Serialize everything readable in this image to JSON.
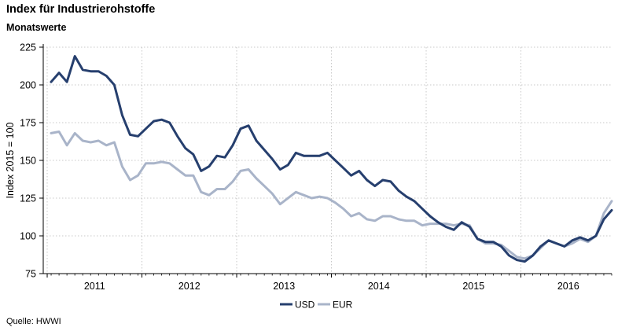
{
  "title": "Index für Industrierohstoffe",
  "subtitle": "Monatswerte",
  "source": "Quelle: HWWI",
  "colors": {
    "usd": "#263f6e",
    "eur": "#a9b4c9",
    "grid": "#c8c8c8",
    "axis": "#000000"
  },
  "chart_data": {
    "type": "line",
    "title": "Index für Industrierohstoffe",
    "subtitle": "Monatswerte",
    "xlabel": "",
    "ylabel": "Index 2015 = 100",
    "ylim": [
      75,
      225
    ],
    "yticks": [
      75,
      100,
      125,
      150,
      175,
      200,
      225
    ],
    "xlim": [
      "2010-12",
      "2016-12"
    ],
    "year_ticks": [
      "2011",
      "2012",
      "2013",
      "2014",
      "2015",
      "2016"
    ],
    "grid": true,
    "legend_position": "bottom-center",
    "x": [
      "2011-01",
      "2011-02",
      "2011-03",
      "2011-04",
      "2011-05",
      "2011-06",
      "2011-07",
      "2011-08",
      "2011-09",
      "2011-10",
      "2011-11",
      "2011-12",
      "2012-01",
      "2012-02",
      "2012-03",
      "2012-04",
      "2012-05",
      "2012-06",
      "2012-07",
      "2012-08",
      "2012-09",
      "2012-10",
      "2012-11",
      "2012-12",
      "2013-01",
      "2013-02",
      "2013-03",
      "2013-04",
      "2013-05",
      "2013-06",
      "2013-07",
      "2013-08",
      "2013-09",
      "2013-10",
      "2013-11",
      "2013-12",
      "2014-01",
      "2014-02",
      "2014-03",
      "2014-04",
      "2014-05",
      "2014-06",
      "2014-07",
      "2014-08",
      "2014-09",
      "2014-10",
      "2014-11",
      "2014-12",
      "2015-01",
      "2015-02",
      "2015-03",
      "2015-04",
      "2015-05",
      "2015-06",
      "2015-07",
      "2015-08",
      "2015-09",
      "2015-10",
      "2015-11",
      "2015-12",
      "2016-01",
      "2016-02",
      "2016-03",
      "2016-04",
      "2016-05",
      "2016-06",
      "2016-07",
      "2016-08",
      "2016-09",
      "2016-10",
      "2016-11",
      "2016-12"
    ],
    "series": [
      {
        "name": "USD",
        "values": [
          202,
          208,
          202,
          219,
          210,
          209,
          209,
          206,
          200,
          180,
          167,
          166,
          171,
          176,
          177,
          175,
          166,
          158,
          154,
          143,
          146,
          153,
          152,
          160,
          171,
          173,
          163,
          157,
          151,
          144,
          147,
          155,
          153,
          153,
          153,
          155,
          150,
          145,
          140,
          143,
          137,
          133,
          137,
          136,
          130,
          126,
          123,
          118,
          113,
          109,
          106,
          104,
          109,
          106,
          98,
          96,
          96,
          93,
          87,
          84,
          83,
          87,
          93,
          97,
          95,
          93,
          97,
          99,
          97,
          100,
          111,
          117
        ]
      },
      {
        "name": "EUR",
        "values": [
          168,
          169,
          160,
          168,
          163,
          162,
          163,
          160,
          162,
          146,
          137,
          140,
          148,
          148,
          149,
          148,
          144,
          140,
          140,
          129,
          127,
          131,
          131,
          136,
          143,
          144,
          138,
          133,
          128,
          121,
          125,
          129,
          127,
          125,
          126,
          125,
          122,
          118,
          113,
          115,
          111,
          110,
          113,
          113,
          111,
          110,
          110,
          107,
          108,
          108,
          108,
          107,
          108,
          107,
          98,
          95,
          95,
          94,
          90,
          86,
          85,
          87,
          92,
          97,
          95,
          93,
          95,
          98,
          96,
          100,
          115,
          123
        ]
      }
    ]
  }
}
